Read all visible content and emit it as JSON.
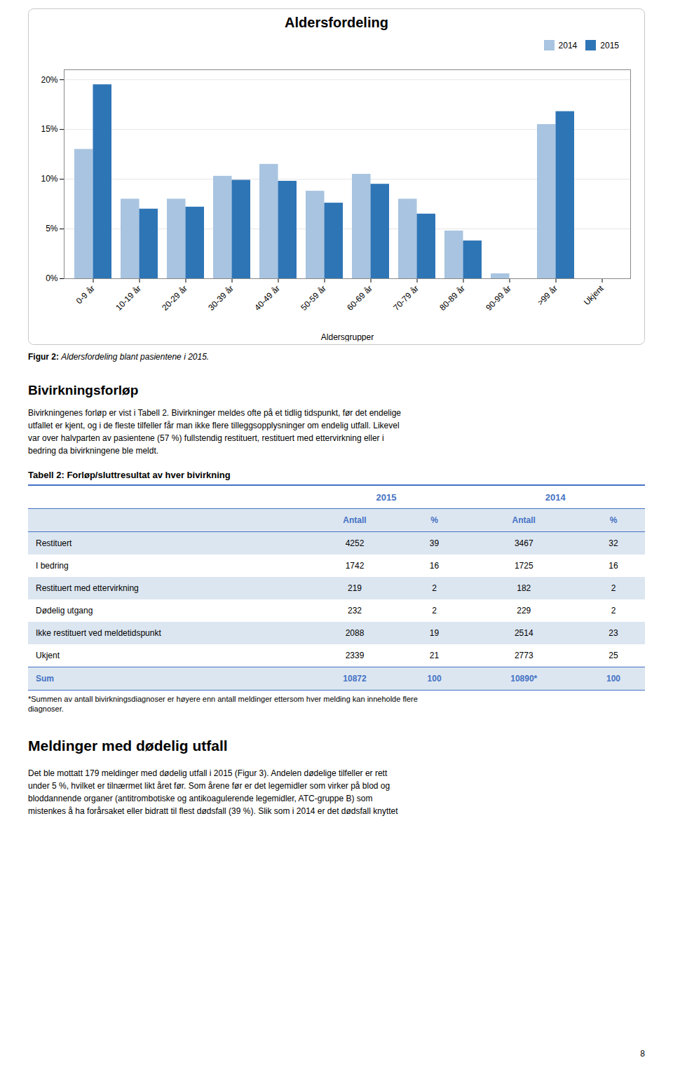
{
  "chart_data": {
    "type": "bar",
    "title": "Aldersfordeling",
    "categories": [
      "0-9 år",
      "10-19 år",
      "20-29 år",
      "30-39 år",
      "40-49 år",
      "50-59 år",
      "60-69 år",
      "70-79 år",
      "80-89 år",
      "90-99 år",
      ">99 år",
      "Ukjent"
    ],
    "series": [
      {
        "name": "2014",
        "color": "#a8c4e0",
        "values": [
          13.0,
          8.0,
          8.0,
          10.3,
          11.5,
          8.8,
          10.5,
          8.0,
          4.8,
          0.5,
          15.5,
          0.0
        ]
      },
      {
        "name": "2015",
        "color": "#2e75b6",
        "values": [
          19.5,
          7.0,
          7.2,
          9.9,
          9.8,
          7.6,
          9.5,
          6.5,
          3.8,
          0.0,
          16.8,
          0.0
        ]
      }
    ],
    "xlabel": "Aldersgrupper",
    "ylim": [
      0,
      21
    ],
    "yticks": [
      {
        "value": 0,
        "label": "0%"
      },
      {
        "value": 5,
        "label": "5%"
      },
      {
        "value": 10,
        "label": "10%"
      },
      {
        "value": 15,
        "label": "15%"
      },
      {
        "value": 20,
        "label": "20%"
      }
    ],
    "grid": true,
    "legend": "upper right"
  },
  "caption": {
    "label": "Figur 2:",
    "text": "Aldersfordeling blant pasientene i 2015."
  },
  "section1": {
    "title": "Bivirkningsforløp",
    "lines": [
      "Bivirkningenes forløp er vist i Tabell 2. Bivirkninger meldes ofte på et tidlig tidspunkt, før det endelige",
      "utfallet er kjent, og i de fleste tilfeller får man ikke flere tilleggsopplysninger om endelig utfall. Likevel",
      "var over halvparten av pasientene (57 %) fullstendig restituert, restituert med ettervirkning eller i",
      "bedring da bivirkningene ble meldt."
    ]
  },
  "table": {
    "title": "Tabell 2: Forløp/sluttresultat av hver bivirkning",
    "column_groups": [
      "2015",
      "2014"
    ],
    "columns": [
      "Antall",
      "%",
      "Antall",
      "%"
    ],
    "rows": [
      [
        "Restituert",
        "4252",
        "39",
        "3467",
        "32"
      ],
      [
        "I bedring",
        "1742",
        "16",
        "1725",
        "16"
      ],
      [
        "Restituert med ettervirkning",
        "219",
        "2",
        "182",
        "2"
      ],
      [
        "Dødelig utgang",
        "232",
        "2",
        "229",
        "2"
      ],
      [
        "Ikke restituert ved meldetidspunkt",
        "2088",
        "19",
        "2514",
        "23"
      ],
      [
        "Ukjent",
        "2339",
        "21",
        "2773",
        "25"
      ]
    ],
    "total": [
      "Sum",
      "10872",
      "100",
      "10890*",
      "100"
    ],
    "footnote": [
      "*Summen av antall bivirkningsdiagnoser er høyere enn antall meldinger ettersom hver melding kan inneholde flere",
      "diagnoser."
    ]
  },
  "section2": {
    "title": "Meldinger med dødelig utfall",
    "lines": [
      "Det ble mottatt 179 meldinger med dødelig utfall i 2015 (Figur 3). Andelen dødelige tilfeller er rett",
      "under 5 %, hvilket er tilnærmet likt året før. Som årene før er det legemidler som virker på blod og",
      "bloddannende organer (antitrombotiske og antikoagulerende legemidler, ATC-gruppe B) som",
      "mistenkes å ha forårsaket eller bidratt til flest dødsfall (39 %). Slik som i 2014 er det dødsfall knyttet"
    ]
  },
  "page_number": "8"
}
